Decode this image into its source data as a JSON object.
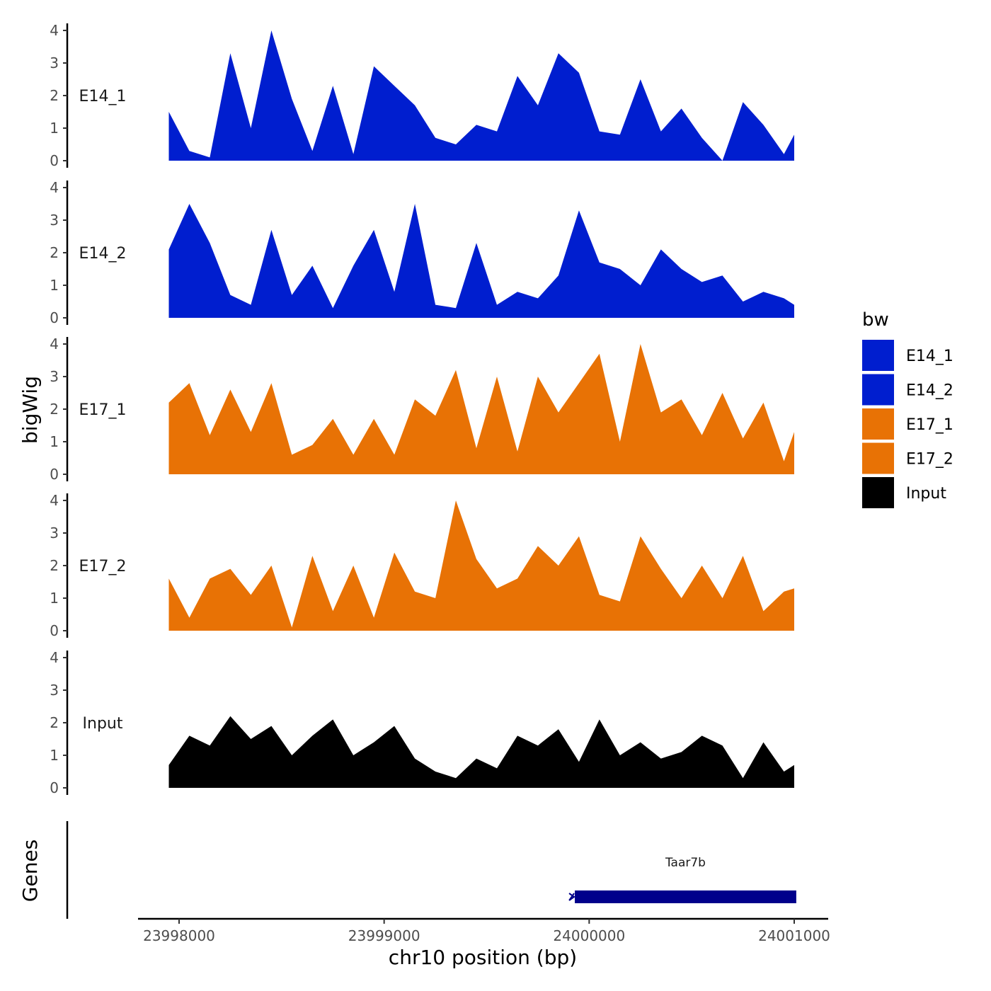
{
  "chart_data": {
    "type": "area",
    "title": "",
    "ylabel": "bigWig",
    "xlabel": "chr10 position (bp)",
    "xlim": [
      23997950,
      24001010
    ],
    "x_ticks": [
      23998000,
      23999000,
      24000000,
      24001000
    ],
    "x_tick_labels": [
      "23998000",
      "23999000",
      "24000000",
      "24001000"
    ],
    "ylim": [
      0,
      4
    ],
    "y_ticks": [
      0,
      1,
      2,
      3,
      4
    ],
    "y_tick_labels": [
      "0",
      "1",
      "2",
      "3",
      "4"
    ],
    "legend_title": "bw",
    "legend_position": "right",
    "x": [
      23997950,
      23998050,
      23998150,
      23998250,
      23998350,
      23998450,
      23998550,
      23998650,
      23998750,
      23998850,
      23998950,
      23999050,
      23999150,
      23999250,
      23999350,
      23999450,
      23999550,
      23999650,
      23999750,
      23999850,
      23999950,
      24000050,
      24000150,
      24000250,
      24000350,
      24000450,
      24000550,
      24000650,
      24000750,
      24000850,
      24000950,
      24001000
    ],
    "series": [
      {
        "name": "E14_1",
        "color": "#001ecf",
        "values": [
          1.5,
          0.3,
          0.1,
          3.3,
          1.0,
          4.0,
          1.9,
          0.3,
          2.3,
          0.2,
          2.9,
          2.3,
          1.7,
          0.7,
          0.5,
          1.1,
          0.9,
          2.6,
          1.7,
          3.3,
          2.7,
          0.9,
          0.8,
          2.5,
          0.9,
          1.6,
          0.7,
          0.0,
          1.8,
          1.1,
          0.2,
          0.8
        ]
      },
      {
        "name": "E14_2",
        "color": "#001ecf",
        "values": [
          2.1,
          3.5,
          2.3,
          0.7,
          0.4,
          2.7,
          0.7,
          1.6,
          0.3,
          1.6,
          2.7,
          0.8,
          3.5,
          0.4,
          0.3,
          2.3,
          0.4,
          0.8,
          0.6,
          1.3,
          3.3,
          1.7,
          1.5,
          1.0,
          2.1,
          1.5,
          1.1,
          1.3,
          0.5,
          0.8,
          0.6,
          0.4
        ]
      },
      {
        "name": "E17_1",
        "color": "#e87205",
        "values": [
          2.2,
          2.8,
          1.2,
          2.6,
          1.3,
          2.8,
          0.6,
          0.9,
          1.7,
          0.6,
          1.7,
          0.6,
          2.3,
          1.8,
          3.2,
          0.8,
          3.0,
          0.7,
          3.0,
          1.9,
          2.8,
          3.7,
          1.0,
          4.0,
          1.9,
          2.3,
          1.2,
          2.5,
          1.1,
          2.2,
          0.4,
          1.3
        ]
      },
      {
        "name": "E17_2",
        "color": "#e87205",
        "values": [
          1.6,
          0.4,
          1.6,
          1.9,
          1.1,
          2.0,
          0.1,
          2.3,
          0.6,
          2.0,
          0.4,
          2.4,
          1.2,
          1.0,
          4.0,
          2.2,
          1.3,
          1.6,
          2.6,
          2.0,
          2.9,
          1.1,
          0.9,
          2.9,
          1.9,
          1.0,
          2.0,
          1.0,
          2.3,
          0.6,
          1.2,
          1.3
        ]
      },
      {
        "name": "Input",
        "color": "#000000",
        "values": [
          0.7,
          1.6,
          1.3,
          2.2,
          1.5,
          1.9,
          1.0,
          1.6,
          2.1,
          1.0,
          1.4,
          1.9,
          0.9,
          0.5,
          0.3,
          0.9,
          0.6,
          1.6,
          1.3,
          1.8,
          0.8,
          2.1,
          1.0,
          1.4,
          0.9,
          1.1,
          1.6,
          1.3,
          0.3,
          1.4,
          0.5,
          0.7
        ]
      }
    ],
    "gene_track": {
      "label": "Genes",
      "genes": [
        {
          "name": "Taar7b",
          "start": 23999930,
          "end": 24001010,
          "color": "#00008b"
        }
      ]
    }
  }
}
